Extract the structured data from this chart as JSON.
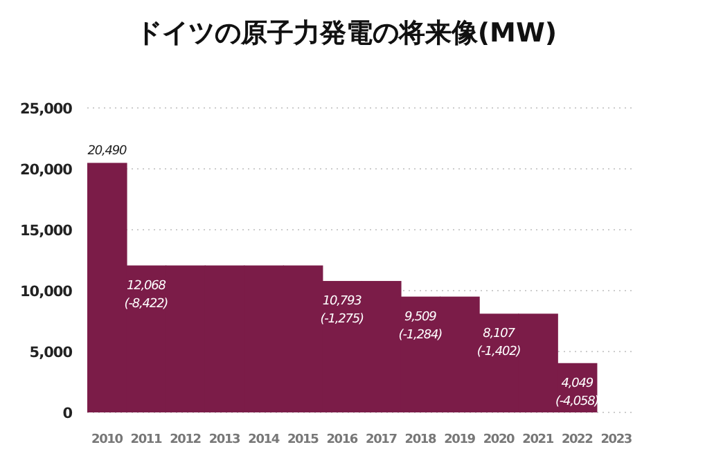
{
  "chart_data": {
    "type": "bar",
    "title": "ドイツの原子力発電の将来像(MW)",
    "categories": [
      "2010",
      "2011",
      "2012",
      "2013",
      "2014",
      "2015",
      "2016",
      "2017",
      "2018",
      "2019",
      "2020",
      "2021",
      "2022",
      "2023"
    ],
    "values": [
      20490,
      12068,
      12068,
      12068,
      12068,
      12068,
      10793,
      10793,
      9509,
      9509,
      8107,
      8107,
      4049,
      null
    ],
    "value_labels": [
      "20,490",
      "12,068 (-8,422)",
      null,
      null,
      null,
      null,
      "10,793 (-1,275)",
      null,
      "9,509 (-1,284)",
      null,
      "8,107 (-1,402)",
      null,
      "4,049 (-4,058)",
      null
    ],
    "color": "#7b1c48",
    "ylim": [
      0,
      25000
    ],
    "yticks": [
      0,
      {
        "value": 5000,
        "label": "5,000"
      },
      {
        "value": 10000,
        "label": "10,000"
      },
      {
        "value": 15000,
        "label": "15,000"
      },
      {
        "value": 20000,
        "label": "20,000"
      },
      {
        "value": 25000,
        "label": "25,000"
      }
    ],
    "grid": "y"
  }
}
